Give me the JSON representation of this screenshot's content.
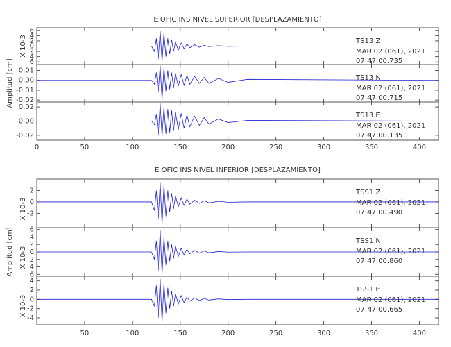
{
  "chart_data": [
    {
      "type": "line",
      "title": "E OFIC INS NIVEL SUPERIOR [DESPLAZAMIENTO]",
      "ylabel": "Amplitud [cm]",
      "color": "#2020d0",
      "xlim": [
        0,
        420
      ],
      "xticks": [
        0,
        50,
        100,
        150,
        200,
        250,
        300,
        350,
        400
      ],
      "panels": [
        {
          "station": "TS13   Z",
          "date": "MAR 02 (061), 2021",
          "time": "07:47:00.735",
          "scale_label": "X 10-3",
          "ylim": [
            -7,
            7
          ],
          "yticks": [
            {
              "value": -6,
              "label": "6"
            },
            {
              "value": -4,
              "label": "4"
            },
            {
              "value": -2,
              "label": "2"
            },
            0,
            2,
            4,
            6
          ],
          "x": [
            0,
            120,
            123,
            125,
            127,
            129,
            131,
            133,
            135,
            137,
            139,
            141,
            143,
            145,
            148,
            151,
            154,
            157,
            160,
            165,
            170,
            175,
            180,
            190,
            200,
            220,
            420
          ],
          "values": [
            0,
            0,
            -2,
            3,
            -5,
            6,
            -6,
            5,
            -4,
            3,
            -3,
            2.5,
            -2,
            1.5,
            -1.5,
            1.2,
            -1,
            0.8,
            -0.6,
            0.5,
            -0.4,
            0.3,
            -0.2,
            0.15,
            -0.1,
            0,
            0
          ]
        },
        {
          "station": "TS13   N",
          "date": "MAR 02 (061), 2021",
          "time": "07:47:00.715",
          "ylim": [
            -0.022,
            0.016
          ],
          "yticks": [
            -0.02,
            -0.01,
            {
              "value": 0,
              "label": "0.00"
            },
            0.01
          ],
          "x": [
            0,
            120,
            123,
            125,
            127,
            129,
            131,
            133,
            135,
            137,
            139,
            141,
            143,
            145,
            148,
            151,
            154,
            157,
            160,
            165,
            170,
            175,
            180,
            190,
            200,
            220,
            420
          ],
          "values": [
            0,
            0,
            -0.004,
            0.008,
            -0.012,
            0.015,
            -0.02,
            0.013,
            -0.011,
            0.01,
            -0.009,
            0.008,
            -0.008,
            0.007,
            -0.006,
            0.006,
            -0.005,
            0.005,
            -0.004,
            0.004,
            -0.003,
            0.003,
            -0.003,
            0.002,
            -0.002,
            0.001,
            0
          ]
        },
        {
          "station": "TS13   E",
          "date": "MAR 02 (061), 2021",
          "time": "07:47:00.135",
          "ylim": [
            -0.027,
            0.027
          ],
          "yticks": [
            -0.02,
            {
              "value": 0,
              "label": "0.00"
            },
            0.02
          ],
          "x": [
            0,
            120,
            123,
            125,
            127,
            129,
            131,
            133,
            135,
            137,
            139,
            141,
            143,
            145,
            148,
            151,
            154,
            157,
            160,
            165,
            170,
            175,
            180,
            190,
            200,
            220,
            420
          ],
          "values": [
            0,
            0,
            -0.005,
            0.01,
            -0.02,
            0.025,
            -0.022,
            0.02,
            -0.018,
            0.017,
            -0.016,
            0.015,
            -0.014,
            0.013,
            -0.012,
            0.011,
            -0.01,
            0.009,
            -0.008,
            0.007,
            -0.006,
            0.005,
            -0.004,
            0.003,
            -0.002,
            0.001,
            0
          ]
        }
      ]
    },
    {
      "type": "line",
      "title": "E OFIC INS NIVEL INFERIOR [DESPLAZAMIENTO]",
      "ylabel": "Amplitud [cm]",
      "color": "#2020d0",
      "xlim": [
        0,
        420
      ],
      "xticks": [
        50,
        100,
        150,
        200,
        250,
        300,
        350,
        400
      ],
      "panels": [
        {
          "station": "TSS1   Z",
          "date": "MAR 02 (061), 2021",
          "time": "07:47:00.490",
          "scale_label": "X 10-3",
          "ylim": [
            -4.5,
            4
          ],
          "yticks": [
            -2,
            0,
            2
          ],
          "x": [
            0,
            120,
            123,
            125,
            127,
            129,
            131,
            133,
            135,
            137,
            139,
            141,
            143,
            145,
            148,
            151,
            154,
            157,
            160,
            165,
            170,
            175,
            180,
            190,
            200,
            220,
            420
          ],
          "values": [
            0,
            0,
            -1.5,
            2,
            -3,
            3.5,
            -4,
            3,
            -2.5,
            2,
            -1.8,
            1.5,
            -1.2,
            1,
            -0.8,
            0.7,
            -0.6,
            0.5,
            -0.4,
            0.3,
            -0.25,
            0.2,
            -0.15,
            0.1,
            -0.05,
            0,
            0
          ]
        },
        {
          "station": "TSS1   N",
          "date": "MAR 02 (061), 2021",
          "time": "07:47:00.860",
          "scale_label": "X 10-3",
          "ylim": [
            -6.5,
            6.5
          ],
          "yticks": [
            {
              "value": -6,
              "label": "6"
            },
            {
              "value": -4,
              "label": "4"
            },
            {
              "value": -2,
              "label": "2"
            },
            0,
            2,
            4,
            6
          ],
          "x": [
            0,
            120,
            123,
            125,
            127,
            129,
            131,
            133,
            135,
            137,
            139,
            141,
            143,
            145,
            148,
            151,
            154,
            157,
            160,
            165,
            170,
            175,
            180,
            190,
            200,
            220,
            420
          ],
          "values": [
            0,
            0,
            -2,
            3,
            -5,
            6,
            -6,
            4,
            -3.5,
            3,
            -2.5,
            2,
            -1.8,
            1.5,
            -1.2,
            1,
            -0.8,
            0.7,
            -0.5,
            0.4,
            -0.3,
            0.25,
            -0.2,
            0.1,
            -0.05,
            0,
            0
          ]
        },
        {
          "station": "TSS1   E",
          "date": "MAR 02 (061), 2021",
          "time": "07:47:00.665",
          "scale_label": "X 10-3",
          "ylim": [
            -5.5,
            5
          ],
          "yticks": [
            -4,
            -2,
            0,
            2,
            4
          ],
          "x": [
            0,
            120,
            123,
            125,
            127,
            129,
            131,
            133,
            135,
            137,
            139,
            141,
            143,
            145,
            148,
            151,
            154,
            157,
            160,
            165,
            170,
            175,
            180,
            190,
            200,
            220,
            420
          ],
          "values": [
            0,
            0,
            -1.5,
            3,
            -4,
            4.5,
            -5,
            3.5,
            -3,
            2.5,
            -2,
            1.8,
            -1.5,
            1.2,
            -1,
            0.8,
            -0.7,
            0.5,
            -0.4,
            0.3,
            -0.25,
            0.2,
            -0.15,
            0.1,
            -0.05,
            0,
            0
          ]
        }
      ]
    }
  ]
}
